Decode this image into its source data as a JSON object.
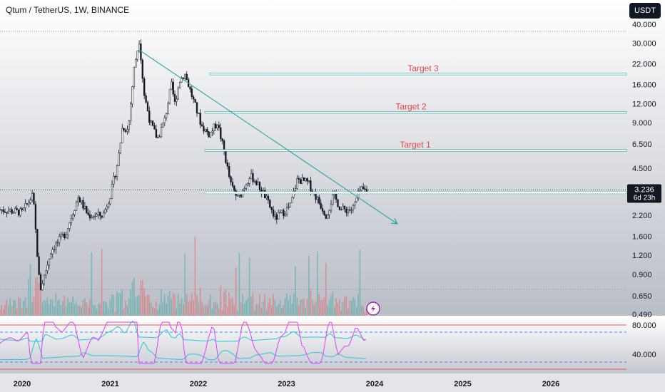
{
  "header": {
    "symbol_title": "Qtum / TetherUS, 1W, BINANCE",
    "currency_label": "USDT"
  },
  "price_panel": {
    "last_price_label": "3.236",
    "countdown_label": "6d 23h",
    "targets": [
      {
        "label": "Target 1",
        "price": 5.9
      },
      {
        "label": "Target 2",
        "price": 10.5
      },
      {
        "label": "Target 3",
        "price": 18.8
      }
    ],
    "support_price": 3.1
  },
  "rsi_panel": {
    "level_labels": [
      "80.000",
      "40.000"
    ]
  },
  "colors": {
    "up": "#26a69a",
    "down": "#ef5350",
    "candle": "#131722",
    "target_text": "#e8474c",
    "trendline": "#26a69a",
    "rsi_line": "#e040fb",
    "band_line": "#26c6da",
    "flash_icon": "#9c27b0"
  },
  "icons": {
    "indicator_flash": "flash-icon"
  },
  "chart_data": {
    "type": "candlestick",
    "scale": "log",
    "price_ticks": [
      40.0,
      30.0,
      22.0,
      16.0,
      12.0,
      9.0,
      6.5,
      4.5,
      3.236,
      2.2,
      1.6,
      1.2,
      0.9,
      0.65,
      0.49
    ],
    "price_tick_labels": [
      "40.000",
      "30.000",
      "22.000",
      "16.000",
      "12.000",
      "9.000",
      "6.500",
      "4.500",
      "3.236",
      "2.200",
      "1.600",
      "1.200",
      "0.900",
      "0.650",
      "0.490"
    ],
    "x_tick_labels": [
      "2020",
      "2021",
      "2022",
      "2023",
      "2024",
      "2025",
      "2026"
    ],
    "series_points": [
      [
        "2019-10-01",
        2.4
      ],
      [
        "2020-01-01",
        2.3
      ],
      [
        "2020-02-15",
        3.0
      ],
      [
        "2020-03-15",
        0.7
      ],
      [
        "2020-05-01",
        1.3
      ],
      [
        "2020-07-01",
        1.7
      ],
      [
        "2020-08-20",
        2.9
      ],
      [
        "2020-10-01",
        2.2
      ],
      [
        "2020-12-01",
        2.2
      ],
      [
        "2021-01-01",
        3.0
      ],
      [
        "2021-02-01",
        5.0
      ],
      [
        "2021-02-20",
        8.5
      ],
      [
        "2021-03-15",
        8.0
      ],
      [
        "2021-04-10",
        21.0
      ],
      [
        "2021-05-01",
        32.0
      ],
      [
        "2021-05-20",
        14.0
      ],
      [
        "2021-06-15",
        9.0
      ],
      [
        "2021-07-15",
        7.0
      ],
      [
        "2021-08-15",
        9.5
      ],
      [
        "2021-09-10",
        16.0
      ],
      [
        "2021-09-25",
        12.0
      ],
      [
        "2021-10-15",
        17.0
      ],
      [
        "2021-11-05",
        19.0
      ],
      [
        "2021-12-15",
        12.0
      ],
      [
        "2022-01-15",
        8.5
      ],
      [
        "2022-02-15",
        7.5
      ],
      [
        "2022-03-20",
        9.0
      ],
      [
        "2022-04-15",
        6.0
      ],
      [
        "2022-05-15",
        3.5
      ],
      [
        "2022-06-15",
        2.8
      ],
      [
        "2022-08-01",
        4.0
      ],
      [
        "2022-08-20",
        3.8
      ],
      [
        "2022-10-01",
        3.0
      ],
      [
        "2022-11-15",
        2.1
      ],
      [
        "2023-01-15",
        2.5
      ],
      [
        "2023-02-15",
        3.8
      ],
      [
        "2023-04-01",
        3.6
      ],
      [
        "2023-06-15",
        2.2
      ],
      [
        "2023-07-15",
        3.0
      ],
      [
        "2023-08-15",
        2.4
      ],
      [
        "2023-10-01",
        2.4
      ],
      [
        "2023-11-01",
        3.2
      ],
      [
        "2023-12-05",
        3.236
      ]
    ],
    "trendline": [
      [
        "2021-05-01",
        27.0
      ],
      [
        "2024-04-01",
        1.95
      ]
    ],
    "rsi_levels": [
      80,
      40
    ]
  }
}
